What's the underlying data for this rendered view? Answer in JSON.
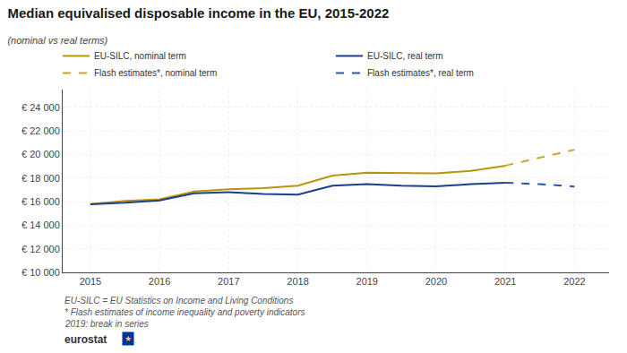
{
  "chart_data": {
    "type": "line",
    "title": "Median equivalised disposable income in the EU, 2015-2022",
    "subtitle": "(nominal vs real terms)",
    "xlim": [
      2014.6,
      2022.5
    ],
    "xticks": [
      2015,
      2016,
      2017,
      2018,
      2019,
      2020,
      2021,
      2022
    ],
    "ylim": [
      10000,
      25500
    ],
    "yticks": [
      {
        "value": 10000,
        "label": "€ 10 000"
      },
      {
        "value": 12000,
        "label": "€ 12 000"
      },
      {
        "value": 14000,
        "label": "€ 14 000"
      },
      {
        "value": 16000,
        "label": "€ 16 000"
      },
      {
        "value": 18000,
        "label": "€ 18 000"
      },
      {
        "value": 20000,
        "label": "€ 20 000"
      },
      {
        "value": 22000,
        "label": "€ 22 000"
      },
      {
        "value": 24000,
        "label": "€ 24 000"
      }
    ],
    "grid": true,
    "legend": "upper right",
    "series": [
      {
        "name": "EU-SILC, nominal term",
        "color": "#b8960c",
        "line_style": "solid",
        "x": [
          2015,
          2015.5,
          2016,
          2016.5,
          2017,
          2017.5,
          2018,
          2018.5,
          2019,
          2019.5,
          2020,
          2020.5,
          2021
        ],
        "values": [
          15800,
          16050,
          16200,
          16850,
          17050,
          17150,
          17350,
          18200,
          18450,
          18450,
          18400,
          18600,
          19050
        ]
      },
      {
        "name": "EU-SILC, real term",
        "color": "#1a3f8f",
        "line_style": "solid",
        "x": [
          2015,
          2015.5,
          2016,
          2016.5,
          2017,
          2017.5,
          2018,
          2018.5,
          2019,
          2019.5,
          2020,
          2020.5,
          2021
        ],
        "values": [
          15780,
          15900,
          16100,
          16700,
          16800,
          16650,
          16600,
          17350,
          17480,
          17350,
          17300,
          17480,
          17600
        ]
      },
      {
        "name": "Flash estimates*, nominal term",
        "color": "#c8a820",
        "line_style": "dashed",
        "x": [
          2021,
          2021.5,
          2022
        ],
        "values": [
          19050,
          19700,
          20400
        ]
      },
      {
        "name": "Flash estimates*, real term",
        "color": "#2855b0",
        "line_style": "dashed",
        "x": [
          2021,
          2021.5,
          2022
        ],
        "values": [
          17600,
          17480,
          17280
        ]
      }
    ],
    "annotations": [
      "EU-SILC = EU Statistics on Income and Living Conditions",
      "* Flash estimates of income inequality and poverty indicators",
      "2019: break in series",
      "eurostat",
      "★"
    ]
  }
}
